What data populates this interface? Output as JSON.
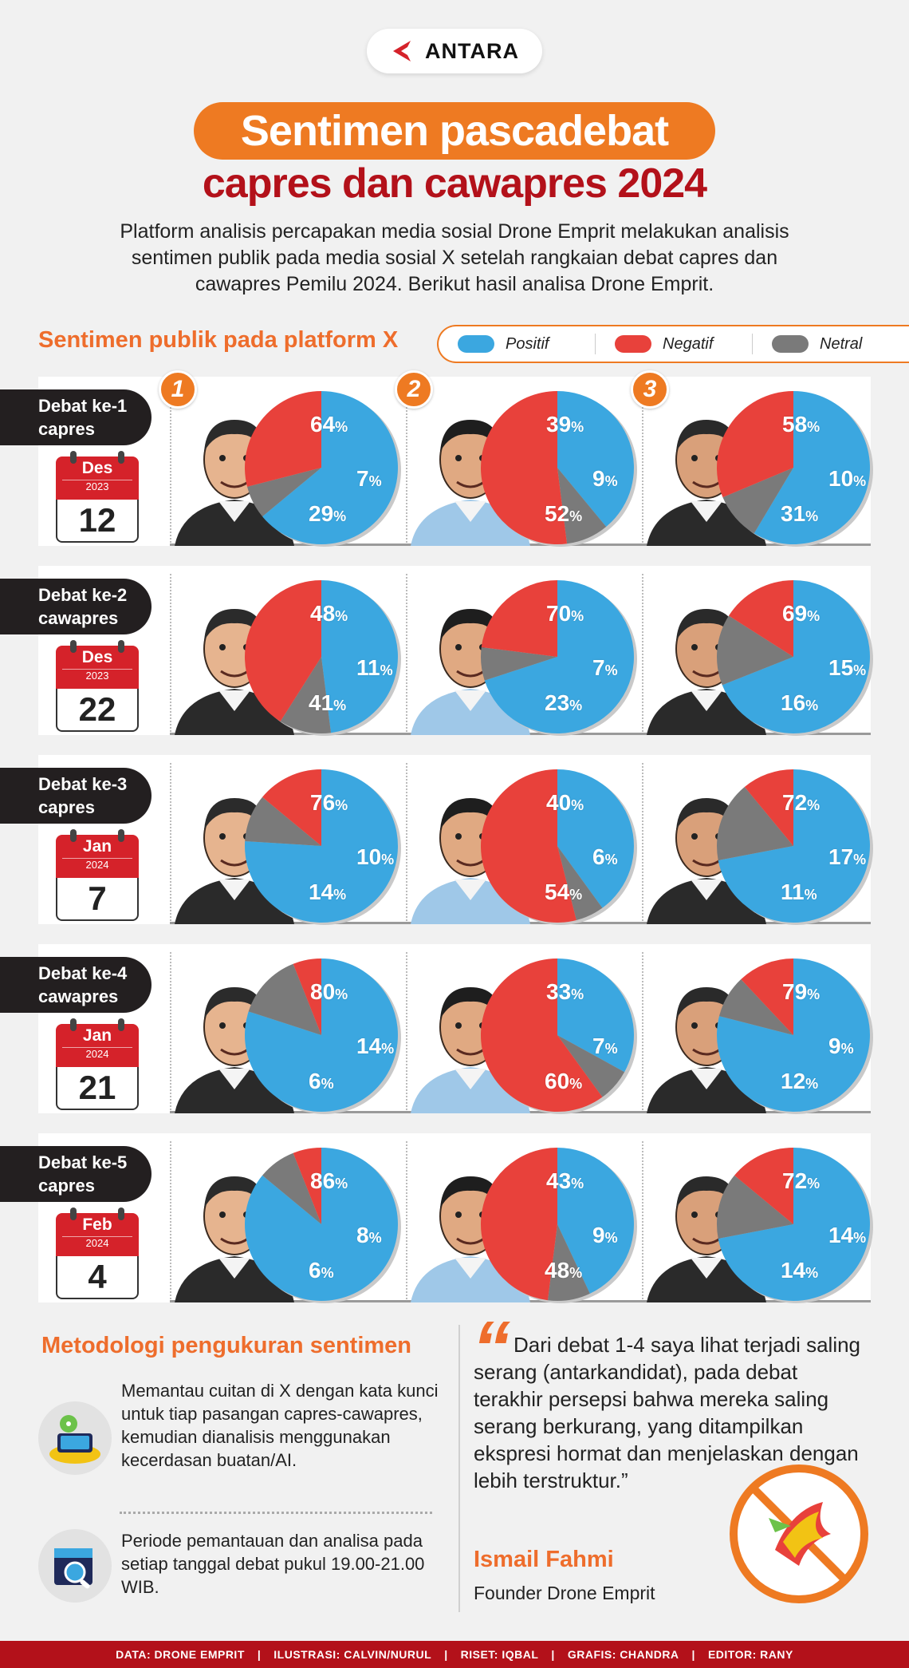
{
  "header": {
    "logo": "ANTARA",
    "title_line1": "Sentimen pascadebat",
    "title_line2": "capres dan cawapres 2024",
    "intro": "Platform analisis percapakan media sosial Drone Emprit melakukan analisis sentimen publik pada media sosial X setelah rangkaian debat capres dan cawapres Pemilu 2024. Berikut hasil analisa Drone Emprit."
  },
  "legend": {
    "heading": "Sentimen publik pada platform X",
    "items": [
      {
        "label": "Positif",
        "color": "#3ba7e0"
      },
      {
        "label": "Negatif",
        "color": "#e8413b"
      },
      {
        "label": "Netral",
        "color": "#7a7a7a"
      }
    ]
  },
  "candidate_numbers": [
    "1",
    "2",
    "3"
  ],
  "chart_data": {
    "type": "pie",
    "units": "%",
    "series_labels": [
      "Positif",
      "Negatif",
      "Netral"
    ],
    "debates": [
      {
        "line1": "Debat ke-1",
        "line2": "capres",
        "month": "Des",
        "year": "2023",
        "day": "12",
        "pies": [
          {
            "pos": 64,
            "neg": 29,
            "neu": 7
          },
          {
            "pos": 39,
            "neg": 52,
            "neu": 9
          },
          {
            "pos": 58,
            "neg": 31,
            "neu": 10
          }
        ]
      },
      {
        "line1": "Debat ke-2",
        "line2": "cawapres",
        "month": "Des",
        "year": "2023",
        "day": "22",
        "pies": [
          {
            "pos": 48,
            "neg": 41,
            "neu": 11
          },
          {
            "pos": 70,
            "neg": 23,
            "neu": 7
          },
          {
            "pos": 69,
            "neg": 16,
            "neu": 15
          }
        ]
      },
      {
        "line1": "Debat ke-3",
        "line2": "capres",
        "month": "Jan",
        "year": "2024",
        "day": "7",
        "pies": [
          {
            "pos": 76,
            "neg": 14,
            "neu": 10
          },
          {
            "pos": 40,
            "neg": 54,
            "neu": 6
          },
          {
            "pos": 72,
            "neg": 11,
            "neu": 17
          }
        ]
      },
      {
        "line1": "Debat ke-4",
        "line2": "cawapres",
        "month": "Jan",
        "year": "2024",
        "day": "21",
        "pies": [
          {
            "pos": 80,
            "neg": 6,
            "neu": 14
          },
          {
            "pos": 33,
            "neg": 60,
            "neu": 7
          },
          {
            "pos": 79,
            "neg": 12,
            "neu": 9
          }
        ]
      },
      {
        "line1": "Debat ke-5",
        "line2": "capres",
        "month": "Feb",
        "year": "2024",
        "day": "4",
        "pies": [
          {
            "pos": 86,
            "neg": 6,
            "neu": 8
          },
          {
            "pos": 43,
            "neg": 48,
            "neu": 9
          },
          {
            "pos": 72,
            "neg": 14,
            "neu": 14
          }
        ]
      }
    ]
  },
  "methodology": {
    "heading": "Metodologi pengukuran sentimen",
    "item1": "Memantau cuitan di X dengan kata kunci untuk tiap pasangan capres-cawapres, kemudian dianalisis menggunakan kecerdasan buatan/AI.",
    "item2": "Periode pemantauan dan analisa pada setiap tanggal debat pukul 19.00-21.00 WIB."
  },
  "quote": {
    "text": "Dari debat 1-4 saya lihat terjadi saling serang (antarkandidat), pada debat terakhir persepsi bahwa mereka saling serang berkurang, yang ditampilkan ekspresi hormat dan menjelaskan dengan lebih terstruktur.”",
    "name": "Ismail Fahmi",
    "role": "Founder Drone Emprit"
  },
  "footer": {
    "data": "DATA: DRONE EMPRIT",
    "ilustrasi": "ILUSTRASI: CALVIN/NURUL",
    "riset": "RISET: IQBAL",
    "grafis": "GRAFIS: CHANDRA",
    "editor": "EDITOR: RANY"
  }
}
